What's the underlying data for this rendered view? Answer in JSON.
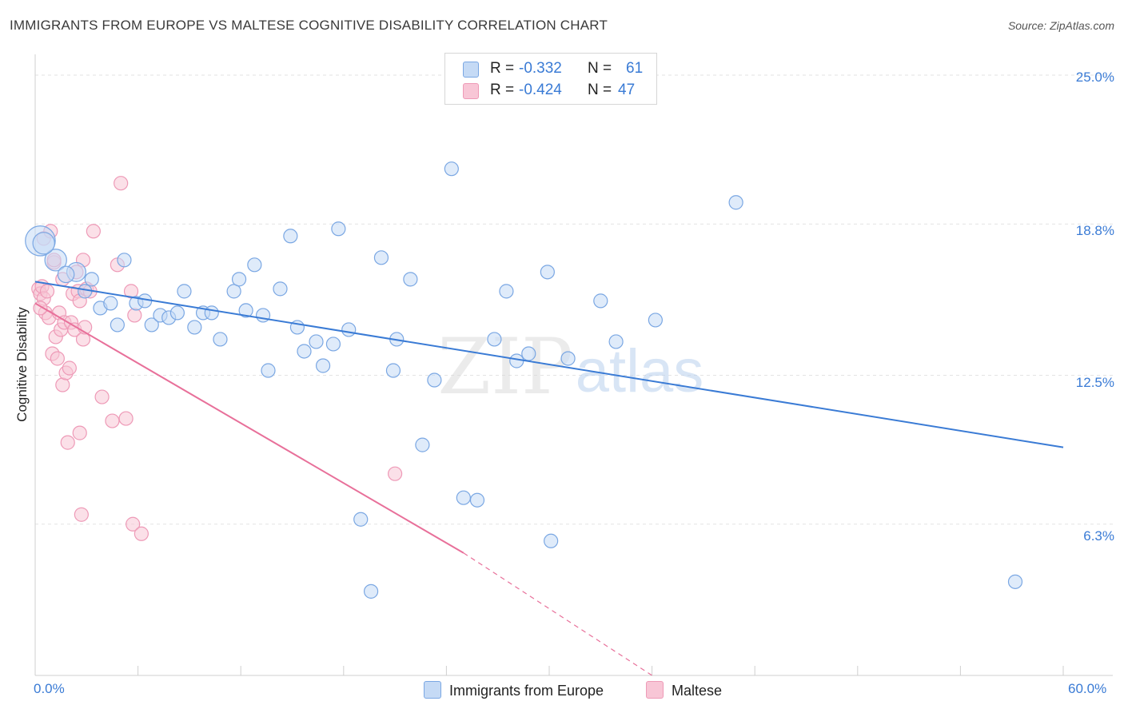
{
  "title": "IMMIGRANTS FROM EUROPE VS MALTESE COGNITIVE DISABILITY CORRELATION CHART",
  "source": "Source: ZipAtlas.com",
  "watermark": {
    "zip": "ZIP",
    "atlas": "atlas"
  },
  "legend_stats": [
    {
      "r_label": "R = ",
      "r_value": "-0.332",
      "n_label": "N = ",
      "n_value": "61"
    },
    {
      "r_label": "R = ",
      "r_value": "-0.424",
      "n_label": "N = ",
      "n_value": "47"
    }
  ],
  "colors": {
    "blue": "#3a7bd5",
    "pink": "#e8709a",
    "blue_fill": "#c5daf5",
    "pink_fill": "#f8c6d6"
  },
  "chart_data": {
    "type": "scatter",
    "title": "IMMIGRANTS FROM EUROPE VS MALTESE COGNITIVE DISABILITY CORRELATION CHART",
    "xlabel": "",
    "ylabel": "Cognitive Disability",
    "xlim": [
      0,
      60
    ],
    "ylim": [
      0,
      25.6
    ],
    "x_tick_labels": [
      "0.0%",
      "60.0%"
    ],
    "y_ticks": [
      6.3,
      12.5,
      18.8,
      25.0
    ],
    "y_tick_labels": [
      "6.3%",
      "12.5%",
      "18.8%",
      "25.0%"
    ],
    "grid": true,
    "legend_position": "top-center",
    "series": [
      {
        "name": "Immigrants from Europe",
        "color": "#3a7bd5",
        "trend": {
          "x": [
            0,
            60
          ],
          "y": [
            16.4,
            9.5
          ]
        },
        "points": [
          {
            "x": 0.3,
            "y": 18.1,
            "s": 2.2
          },
          {
            "x": 1.2,
            "y": 17.3,
            "s": 1.6
          },
          {
            "x": 2.4,
            "y": 16.8,
            "s": 1.4
          },
          {
            "x": 2.9,
            "y": 16.0,
            "s": 1
          },
          {
            "x": 3.3,
            "y": 16.5,
            "s": 1
          },
          {
            "x": 3.8,
            "y": 15.3,
            "s": 1
          },
          {
            "x": 4.4,
            "y": 15.5,
            "s": 1
          },
          {
            "x": 4.8,
            "y": 14.6,
            "s": 1
          },
          {
            "x": 5.2,
            "y": 17.3,
            "s": 1
          },
          {
            "x": 5.9,
            "y": 15.5,
            "s": 1
          },
          {
            "x": 6.4,
            "y": 15.6,
            "s": 1
          },
          {
            "x": 6.8,
            "y": 14.6,
            "s": 1
          },
          {
            "x": 7.3,
            "y": 15.0,
            "s": 1
          },
          {
            "x": 7.8,
            "y": 14.9,
            "s": 1
          },
          {
            "x": 8.3,
            "y": 15.1,
            "s": 1
          },
          {
            "x": 8.7,
            "y": 16.0,
            "s": 1
          },
          {
            "x": 9.3,
            "y": 14.5,
            "s": 1
          },
          {
            "x": 9.8,
            "y": 15.1,
            "s": 1
          },
          {
            "x": 10.3,
            "y": 15.1,
            "s": 1
          },
          {
            "x": 10.8,
            "y": 14.0,
            "s": 1
          },
          {
            "x": 11.6,
            "y": 16.0,
            "s": 1
          },
          {
            "x": 11.9,
            "y": 16.5,
            "s": 1
          },
          {
            "x": 12.3,
            "y": 15.2,
            "s": 1
          },
          {
            "x": 12.8,
            "y": 17.1,
            "s": 1
          },
          {
            "x": 13.3,
            "y": 15.0,
            "s": 1
          },
          {
            "x": 13.6,
            "y": 12.7,
            "s": 1
          },
          {
            "x": 14.3,
            "y": 16.1,
            "s": 1
          },
          {
            "x": 14.9,
            "y": 18.3,
            "s": 1
          },
          {
            "x": 15.3,
            "y": 14.5,
            "s": 1
          },
          {
            "x": 15.7,
            "y": 13.5,
            "s": 1
          },
          {
            "x": 16.4,
            "y": 13.9,
            "s": 1
          },
          {
            "x": 16.8,
            "y": 12.9,
            "s": 1
          },
          {
            "x": 17.4,
            "y": 13.8,
            "s": 1
          },
          {
            "x": 17.7,
            "y": 18.6,
            "s": 1
          },
          {
            "x": 18.3,
            "y": 14.4,
            "s": 1
          },
          {
            "x": 19.0,
            "y": 6.5,
            "s": 1
          },
          {
            "x": 19.6,
            "y": 3.5,
            "s": 1
          },
          {
            "x": 20.2,
            "y": 17.4,
            "s": 1
          },
          {
            "x": 20.9,
            "y": 12.7,
            "s": 1
          },
          {
            "x": 21.1,
            "y": 14.0,
            "s": 1
          },
          {
            "x": 21.9,
            "y": 16.5,
            "s": 1
          },
          {
            "x": 22.6,
            "y": 9.6,
            "s": 1
          },
          {
            "x": 23.3,
            "y": 12.3,
            "s": 1
          },
          {
            "x": 24.3,
            "y": 21.1,
            "s": 1
          },
          {
            "x": 25.0,
            "y": 7.4,
            "s": 1
          },
          {
            "x": 25.8,
            "y": 7.3,
            "s": 1
          },
          {
            "x": 26.8,
            "y": 14.0,
            "s": 1
          },
          {
            "x": 27.5,
            "y": 16.0,
            "s": 1
          },
          {
            "x": 28.1,
            "y": 13.1,
            "s": 1
          },
          {
            "x": 28.8,
            "y": 13.4,
            "s": 1
          },
          {
            "x": 29.9,
            "y": 16.8,
            "s": 1
          },
          {
            "x": 30.1,
            "y": 5.6,
            "s": 1
          },
          {
            "x": 31.1,
            "y": 13.2,
            "s": 1
          },
          {
            "x": 31.8,
            "y": 24.2,
            "s": 1
          },
          {
            "x": 33.0,
            "y": 15.6,
            "s": 1
          },
          {
            "x": 33.9,
            "y": 13.9,
            "s": 1
          },
          {
            "x": 36.2,
            "y": 14.8,
            "s": 1
          },
          {
            "x": 40.9,
            "y": 19.7,
            "s": 1
          },
          {
            "x": 57.2,
            "y": 3.9,
            "s": 1
          },
          {
            "x": 0.5,
            "y": 18.0,
            "s": 1.6
          },
          {
            "x": 1.8,
            "y": 16.7,
            "s": 1.2
          }
        ]
      },
      {
        "name": "Maltese",
        "color": "#e8709a",
        "trend": {
          "x": [
            0,
            25.0
          ],
          "y": [
            15.5,
            5.1
          ]
        },
        "trend_dashed": {
          "x": [
            25.0,
            36.0
          ],
          "y": [
            5.1,
            0.0
          ]
        },
        "points": [
          {
            "x": 0.2,
            "y": 16.1,
            "s": 1
          },
          {
            "x": 0.3,
            "y": 15.9,
            "s": 1
          },
          {
            "x": 0.4,
            "y": 16.2,
            "s": 1
          },
          {
            "x": 0.5,
            "y": 15.7,
            "s": 1
          },
          {
            "x": 0.5,
            "y": 18.2,
            "s": 1
          },
          {
            "x": 0.6,
            "y": 15.1,
            "s": 1
          },
          {
            "x": 0.7,
            "y": 16.0,
            "s": 1
          },
          {
            "x": 0.8,
            "y": 14.9,
            "s": 1
          },
          {
            "x": 0.9,
            "y": 18.5,
            "s": 1
          },
          {
            "x": 1.0,
            "y": 13.4,
            "s": 1
          },
          {
            "x": 1.1,
            "y": 17.2,
            "s": 1
          },
          {
            "x": 1.2,
            "y": 14.1,
            "s": 1
          },
          {
            "x": 1.3,
            "y": 13.2,
            "s": 1
          },
          {
            "x": 1.4,
            "y": 15.1,
            "s": 1
          },
          {
            "x": 1.5,
            "y": 14.4,
            "s": 1
          },
          {
            "x": 1.6,
            "y": 16.5,
            "s": 1
          },
          {
            "x": 1.6,
            "y": 12.1,
            "s": 1
          },
          {
            "x": 1.7,
            "y": 14.7,
            "s": 1
          },
          {
            "x": 1.8,
            "y": 12.6,
            "s": 1
          },
          {
            "x": 1.9,
            "y": 9.7,
            "s": 1
          },
          {
            "x": 2.0,
            "y": 12.8,
            "s": 1
          },
          {
            "x": 2.1,
            "y": 14.7,
            "s": 1
          },
          {
            "x": 2.2,
            "y": 15.9,
            "s": 1
          },
          {
            "x": 2.3,
            "y": 14.4,
            "s": 1
          },
          {
            "x": 2.4,
            "y": 16.8,
            "s": 1
          },
          {
            "x": 2.5,
            "y": 16.0,
            "s": 1
          },
          {
            "x": 2.6,
            "y": 15.6,
            "s": 1
          },
          {
            "x": 2.6,
            "y": 10.1,
            "s": 1
          },
          {
            "x": 2.7,
            "y": 6.7,
            "s": 1
          },
          {
            "x": 2.8,
            "y": 14.0,
            "s": 1
          },
          {
            "x": 2.8,
            "y": 17.3,
            "s": 1
          },
          {
            "x": 2.9,
            "y": 14.5,
            "s": 1
          },
          {
            "x": 3.0,
            "y": 16.1,
            "s": 1
          },
          {
            "x": 3.4,
            "y": 18.5,
            "s": 1
          },
          {
            "x": 3.9,
            "y": 11.6,
            "s": 1
          },
          {
            "x": 4.5,
            "y": 10.6,
            "s": 1
          },
          {
            "x": 4.8,
            "y": 17.1,
            "s": 1
          },
          {
            "x": 5.0,
            "y": 20.5,
            "s": 1
          },
          {
            "x": 5.3,
            "y": 10.7,
            "s": 1
          },
          {
            "x": 5.6,
            "y": 16.0,
            "s": 1
          },
          {
            "x": 5.7,
            "y": 6.3,
            "s": 1
          },
          {
            "x": 5.8,
            "y": 15.0,
            "s": 1
          },
          {
            "x": 6.2,
            "y": 5.9,
            "s": 1
          },
          {
            "x": 21.0,
            "y": 8.4,
            "s": 1
          },
          {
            "x": 0.3,
            "y": 15.3,
            "s": 1
          },
          {
            "x": 1.1,
            "y": 17.3,
            "s": 1
          },
          {
            "x": 3.2,
            "y": 16.0,
            "s": 1
          }
        ]
      }
    ]
  }
}
